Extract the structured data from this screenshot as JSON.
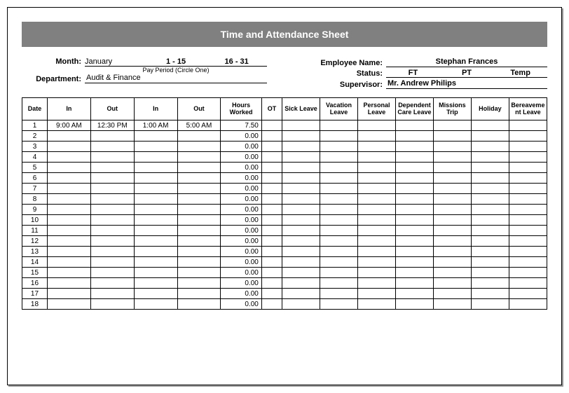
{
  "title": "Time and Attendance Sheet",
  "labels": {
    "month": "Month:",
    "pay_period_caption": "Pay Period (Circle One)",
    "department": "Department:",
    "employee_name": "Employee Name:",
    "status": "Status:",
    "supervisor": "Supervisor:"
  },
  "header": {
    "month": "January",
    "period1": "1 - 15",
    "period2": "16 - 31",
    "department": "Audit & Finance",
    "employee_name": "Stephan Frances",
    "status_ft": "FT",
    "status_pt": "PT",
    "status_temp": "Temp",
    "supervisor": "Mr. Andrew Philips"
  },
  "columns": [
    "Date",
    "In",
    "Out",
    "In",
    "Out",
    "Hours Worked",
    "OT",
    "Sick Leave",
    "Vacation Leave",
    "Personal Leave",
    "Dependent Care Leave",
    "Missions Trip",
    "Holiday",
    "Bereavement Leave"
  ],
  "rows": [
    {
      "date": "1",
      "in1": "9:00 AM",
      "out1": "12:30 PM",
      "in2": "1:00 AM",
      "out2": "5:00 AM",
      "hours": "7.50"
    },
    {
      "date": "2",
      "in1": "",
      "out1": "",
      "in2": "",
      "out2": "",
      "hours": "0.00"
    },
    {
      "date": "3",
      "in1": "",
      "out1": "",
      "in2": "",
      "out2": "",
      "hours": "0.00"
    },
    {
      "date": "4",
      "in1": "",
      "out1": "",
      "in2": "",
      "out2": "",
      "hours": "0.00"
    },
    {
      "date": "5",
      "in1": "",
      "out1": "",
      "in2": "",
      "out2": "",
      "hours": "0.00"
    },
    {
      "date": "6",
      "in1": "",
      "out1": "",
      "in2": "",
      "out2": "",
      "hours": "0.00"
    },
    {
      "date": "7",
      "in1": "",
      "out1": "",
      "in2": "",
      "out2": "",
      "hours": "0.00"
    },
    {
      "date": "8",
      "in1": "",
      "out1": "",
      "in2": "",
      "out2": "",
      "hours": "0.00"
    },
    {
      "date": "9",
      "in1": "",
      "out1": "",
      "in2": "",
      "out2": "",
      "hours": "0.00"
    },
    {
      "date": "10",
      "in1": "",
      "out1": "",
      "in2": "",
      "out2": "",
      "hours": "0.00"
    },
    {
      "date": "11",
      "in1": "",
      "out1": "",
      "in2": "",
      "out2": "",
      "hours": "0.00"
    },
    {
      "date": "12",
      "in1": "",
      "out1": "",
      "in2": "",
      "out2": "",
      "hours": "0.00"
    },
    {
      "date": "13",
      "in1": "",
      "out1": "",
      "in2": "",
      "out2": "",
      "hours": "0.00"
    },
    {
      "date": "14",
      "in1": "",
      "out1": "",
      "in2": "",
      "out2": "",
      "hours": "0.00"
    },
    {
      "date": "15",
      "in1": "",
      "out1": "",
      "in2": "",
      "out2": "",
      "hours": "0.00"
    },
    {
      "date": "16",
      "in1": "",
      "out1": "",
      "in2": "",
      "out2": "",
      "hours": "0.00"
    },
    {
      "date": "17",
      "in1": "",
      "out1": "",
      "in2": "",
      "out2": "",
      "hours": "0.00"
    },
    {
      "date": "18",
      "in1": "",
      "out1": "",
      "in2": "",
      "out2": "",
      "hours": "0.00"
    }
  ]
}
